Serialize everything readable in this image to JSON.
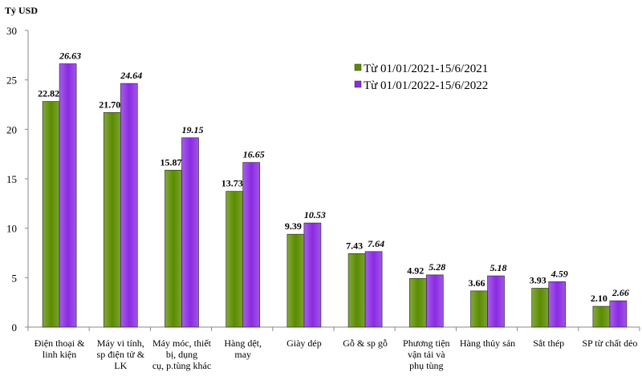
{
  "chart_data": {
    "type": "bar",
    "ylabel": "Tỷ USD",
    "ylim": [
      0,
      30
    ],
    "yticks": [
      "0",
      "5",
      "10",
      "15",
      "20",
      "25",
      "30"
    ],
    "categories": [
      [
        "Điện thoại &",
        "linh kiện"
      ],
      [
        "Máy vi tính,",
        "sp điện tử &",
        "LK"
      ],
      [
        "Máy móc, thiết",
        "bị, dụng",
        "cụ, p.tùng khác"
      ],
      [
        "Hàng dệt,",
        "may"
      ],
      [
        "Giày dép"
      ],
      [
        "Gỗ & sp gỗ"
      ],
      [
        "Phương tiện",
        "vận tải và",
        "phụ tùng"
      ],
      [
        "Hàng thủy sản"
      ],
      [
        "Sắt thép"
      ],
      [
        "SP từ chất dẻo"
      ]
    ],
    "series": [
      {
        "name": "Từ 01/01/2021-15/6/2021",
        "color": "#5b8c00",
        "values": [
          22.82,
          21.7,
          15.87,
          13.73,
          9.39,
          7.43,
          4.92,
          3.66,
          3.93,
          2.1
        ],
        "labels": [
          "22.82",
          "21.70",
          "15.87",
          "13.73",
          "9.39",
          "7.43",
          "4.92",
          "3.66",
          "3.93",
          "2.10"
        ]
      },
      {
        "name": "Từ 01/01/2022-15/6/2022",
        "color": "#8a2be2",
        "values": [
          26.63,
          24.64,
          19.15,
          16.65,
          10.53,
          7.64,
          5.28,
          5.18,
          4.59,
          2.66
        ],
        "labels": [
          "26.63",
          "24.64",
          "19.15",
          "16.65",
          "10.53",
          "7.64",
          "5.28",
          "5.18",
          "4.59",
          "2.66"
        ]
      }
    ],
    "legend": "top-right",
    "grid": false
  }
}
